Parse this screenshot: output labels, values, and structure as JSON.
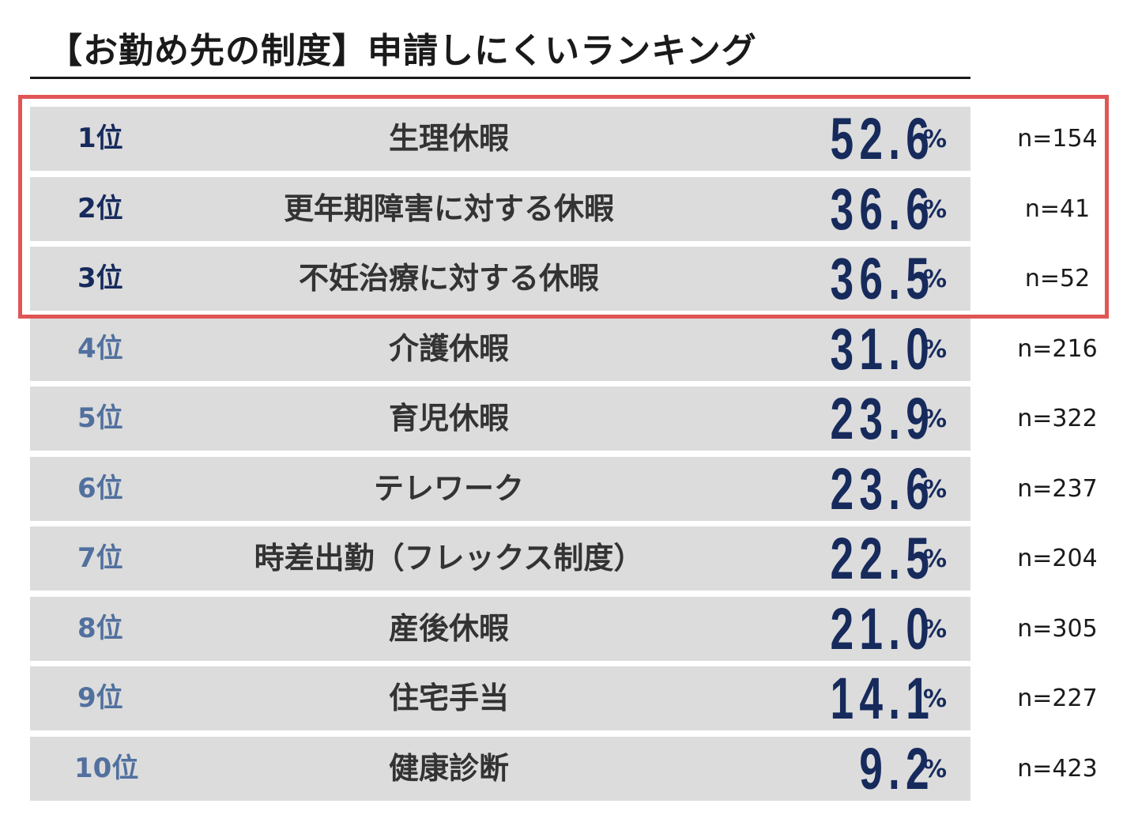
{
  "colors": {
    "bar_bg": "#dcdcdc",
    "value_color": "#162a5c",
    "top_rank_color": "#162a5c",
    "other_rank_color": "#51709e",
    "highlight_border": "#e05555"
  },
  "chart_data": {
    "type": "table",
    "title": "【お勤め先の制度】申請しにくいランキング",
    "percent_sign": "%",
    "highlighted_ranks": [
      1,
      2,
      3
    ],
    "rows": [
      {
        "rank": "1位",
        "label": "生理休暇",
        "value": "52.6",
        "n": "n=154"
      },
      {
        "rank": "2位",
        "label": "更年期障害に対する休暇",
        "value": "36.6",
        "n": "n=41"
      },
      {
        "rank": "3位",
        "label": "不妊治療に対する休暇",
        "value": "36.5",
        "n": "n=52"
      },
      {
        "rank": "4位",
        "label": "介護休暇",
        "value": "31.0",
        "n": "n=216"
      },
      {
        "rank": "5位",
        "label": "育児休暇",
        "value": "23.9",
        "n": "n=322"
      },
      {
        "rank": "6位",
        "label": "テレワーク",
        "value": "23.6",
        "n": "n=237"
      },
      {
        "rank": "7位",
        "label": "時差出勤（フレックス制度）",
        "value": "22.5",
        "n": "n=204"
      },
      {
        "rank": "8位",
        "label": "産後休暇",
        "value": "21.0",
        "n": "n=305"
      },
      {
        "rank": "9位",
        "label": "住宅手当",
        "value": "14.1",
        "n": "n=227"
      },
      {
        "rank": "10位",
        "label": "健康診断",
        "value": "9.2",
        "n": "n=423"
      }
    ]
  }
}
